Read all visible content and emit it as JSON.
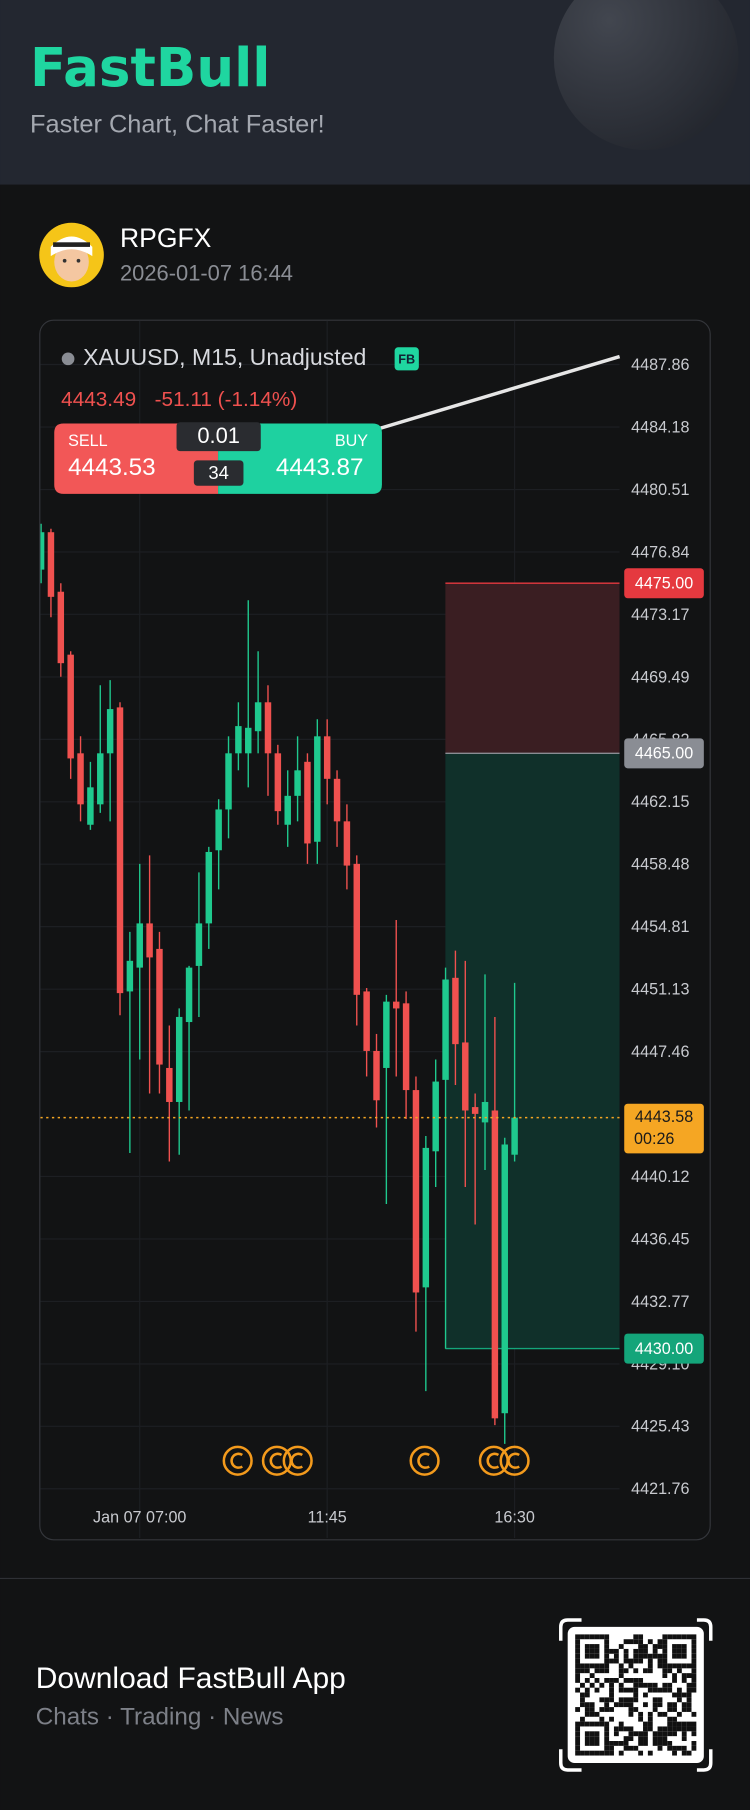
{
  "header": {
    "logo": "FastBull",
    "tagline": "Faster Chart, Chat Faster!"
  },
  "post": {
    "user": "RPGFX",
    "time": "2026-01-07 16:44"
  },
  "chart_data": {
    "type": "candlestick",
    "title": "XAUUSD, M15, Unadjusted",
    "badge": "FB",
    "last": 4443.49,
    "change_label": "-51.11 (-1.14%)",
    "trade": {
      "sell_label": "SELL",
      "sell_price": 4443.53,
      "lot": 0.01,
      "spread": 34,
      "buy_label": "BUY",
      "buy_price": 4443.87
    },
    "categories": [
      null,
      null,
      null,
      null,
      null,
      null,
      null,
      null,
      null,
      null,
      "Jan 07 07:00",
      null,
      null,
      null,
      null,
      null,
      null,
      null,
      null,
      null,
      null,
      null,
      null,
      null,
      null,
      null,
      null,
      null,
      null,
      "11:45",
      null,
      null,
      null,
      null,
      null,
      null,
      null,
      null,
      null,
      null,
      null,
      null,
      null,
      null,
      null,
      null,
      null,
      null,
      "16:30"
    ],
    "open": [
      4475.8,
      4478.0,
      4474.5,
      4470.8,
      4465,
      4460.8,
      4462,
      4465,
      4467.7,
      4451,
      4452.4,
      4455,
      4453.5,
      4446.5,
      4444.5,
      4449.2,
      4452.5,
      4455,
      4459.3,
      4461.7,
      4465,
      4465,
      4466.3,
      4468,
      4465,
      4460.8,
      4462.5,
      4464.5,
      4459.8,
      4466,
      4463.5,
      4461,
      4458.5,
      4451,
      4447.5,
      4446.5,
      4450.4,
      4450.3,
      4445.2,
      4433.6,
      4441.6,
      4445.8,
      4451.8,
      4448,
      4444.2,
      4443.3,
      4444,
      4426.2,
      4441.4
    ],
    "high": [
      4478.5,
      4478.2,
      4475,
      4471,
      4466,
      4464.5,
      4469,
      4469.3,
      4468,
      4454.5,
      4458.5,
      4459,
      4454.5,
      4449,
      4450,
      4452.5,
      4458,
      4459.5,
      4462.3,
      4466,
      4468,
      4474,
      4471,
      4469,
      4465.5,
      4464,
      4466,
      4465,
      4467,
      4467,
      4464,
      4462,
      4459,
      4451.2,
      4448.5,
      4450.8,
      4455.2,
      4451,
      4446,
      4442.5,
      4447,
      4452.4,
      4453.4,
      4452.8,
      4445,
      4452,
      4449.5,
      4442.4,
      4451.5
    ],
    "low": [
      4475.0,
      4473.0,
      4469.5,
      4463.5,
      4461,
      4460.5,
      4461.5,
      4461,
      4449.6,
      4441.5,
      4447,
      4445,
      4445,
      4441,
      4441.4,
      4444,
      4449.5,
      4453.5,
      4457,
      4460,
      4464,
      4463,
      4465,
      4462.5,
      4460.8,
      4459.5,
      4461,
      4458.5,
      4458.5,
      4462,
      4459.5,
      4457,
      4449,
      4446,
      4443,
      4438.5,
      4446,
      4443.5,
      4431,
      4427.5,
      4439.5,
      4430,
      4445.5,
      4439.5,
      4437.3,
      4440.5,
      4425.5,
      4424.4,
      4441
    ],
    "close": [
      4478.0,
      4474.2,
      4470.3,
      4464.7,
      4462,
      4463,
      4465,
      4467.6,
      4450.9,
      4452.8,
      4455,
      4453,
      4446.7,
      4444.5,
      4449.5,
      4452.4,
      4455,
      4459.2,
      4461.7,
      4465,
      4466.6,
      4466.5,
      4468,
      4465,
      4461.6,
      4462.5,
      4464,
      4459.7,
      4466,
      4463.5,
      4461,
      4458.4,
      4450.8,
      4447.5,
      4444.6,
      4450.4,
      4450,
      4445.2,
      4433.3,
      4441.8,
      4445.7,
      4451.7,
      4447.9,
      4444,
      4443.8,
      4444.5,
      4425.9,
      4442,
      4443.58
    ],
    "up_color": "#1fc98e",
    "down_color": "#f0514f",
    "ylim": [
      4421.1,
      4490.5
    ],
    "yticks": [
      4487.86,
      4484.18,
      4480.51,
      4476.84,
      4473.17,
      4469.49,
      4465.82,
      4462.15,
      4458.48,
      4454.81,
      4451.13,
      4447.46,
      4440.12,
      4436.45,
      4432.77,
      {
        "value": 4429.1,
        "label": "4429.10"
      },
      4425.43,
      4421.76
    ],
    "grid": true,
    "price_lines": [
      {
        "value": 4475,
        "label": "4475.00",
        "color": "#e5393f"
      },
      {
        "value": 4465,
        "label": "4465.00",
        "color": "#8a8d94"
      },
      {
        "value": 4430,
        "label": "4430.00",
        "color": "#14a57a"
      }
    ],
    "current_price": 4443.58,
    "countdown": "00:26",
    "current_color": "#f5a623"
  },
  "footer": {
    "title": "Download FastBull App",
    "subtitle": "Chats · Trading · News"
  }
}
